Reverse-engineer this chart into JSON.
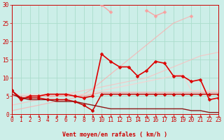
{
  "background_color": "#cceee8",
  "grid_color": "#aaddcc",
  "xlabel": "Vent moyen/en rafales ( km/h )",
  "xlim": [
    0,
    23
  ],
  "ylim": [
    0,
    30
  ],
  "yticks": [
    0,
    5,
    10,
    15,
    20,
    25,
    30
  ],
  "xticks": [
    0,
    1,
    2,
    3,
    4,
    5,
    6,
    7,
    8,
    9,
    10,
    11,
    12,
    13,
    14,
    15,
    16,
    17,
    18,
    19,
    20,
    21,
    22,
    23
  ],
  "series": [
    {
      "x": [
        0,
        1,
        2,
        3,
        4,
        5,
        6,
        7,
        8,
        9,
        10,
        11,
        12,
        13,
        14,
        15,
        16,
        17,
        18,
        19,
        20,
        21,
        22,
        23
      ],
      "y": [
        1.0,
        1.5,
        2.0,
        2.5,
        3.0,
        3.5,
        4.0,
        4.5,
        5.5,
        7.0,
        9.0,
        11.0,
        13.0,
        15.0,
        17.0,
        19.0,
        21.0,
        23.0,
        25.0,
        26.0,
        27.0,
        null,
        null,
        null
      ],
      "color": "#ffaaaa",
      "lw": 0.9,
      "marker": null,
      "ms": 0,
      "alpha": 0.7,
      "linestyle": "-"
    },
    {
      "x": [
        0,
        1,
        2,
        3,
        4,
        5,
        6,
        7,
        8,
        9,
        10,
        11,
        12,
        13,
        14,
        15,
        16,
        17,
        18,
        19,
        20,
        21,
        22,
        23
      ],
      "y": [
        2.5,
        3.0,
        3.5,
        4.0,
        4.5,
        5.0,
        5.5,
        6.0,
        6.5,
        7.0,
        7.5,
        8.0,
        8.5,
        9.0,
        9.5,
        10.0,
        11.0,
        12.0,
        13.0,
        14.0,
        15.0,
        16.0,
        16.5,
        17.0
      ],
      "color": "#ffbbbb",
      "lw": 0.9,
      "marker": null,
      "ms": 0,
      "alpha": 0.7,
      "linestyle": "-"
    },
    {
      "x": [
        0,
        1,
        2,
        3,
        4,
        5,
        6,
        7,
        8,
        9,
        10,
        11,
        12,
        13,
        14,
        15,
        16,
        17,
        18,
        19,
        20,
        21,
        22,
        23
      ],
      "y": [
        5.5,
        5.5,
        5.5,
        5.5,
        5.5,
        5.5,
        5.5,
        5.5,
        5.5,
        6.0,
        6.5,
        7.0,
        7.5,
        8.0,
        8.5,
        9.0,
        9.5,
        10.0,
        10.5,
        11.0,
        6.5,
        6.5,
        6.5,
        6.5
      ],
      "color": "#ffcccc",
      "lw": 0.9,
      "marker": null,
      "ms": 0,
      "alpha": 0.75,
      "linestyle": "-"
    },
    {
      "x": [
        0,
        1,
        2,
        3,
        4,
        5,
        6,
        7,
        8,
        9,
        10,
        11,
        12,
        13,
        14,
        15,
        16,
        17,
        18,
        19,
        20,
        21,
        22,
        23
      ],
      "y": [
        5.0,
        5.0,
        5.0,
        5.0,
        5.0,
        5.0,
        5.0,
        5.0,
        5.0,
        5.5,
        6.0,
        6.0,
        6.0,
        6.0,
        6.0,
        6.0,
        6.0,
        6.0,
        6.0,
        6.0,
        6.0,
        6.0,
        6.0,
        6.0
      ],
      "color": "#ff9999",
      "lw": 1.0,
      "marker": null,
      "ms": 0,
      "alpha": 0.8,
      "linestyle": "-"
    },
    {
      "x": [
        0,
        1,
        2,
        3,
        4,
        5,
        6,
        7,
        8,
        9,
        10,
        11,
        12,
        13,
        14,
        15,
        16,
        17,
        18,
        19,
        20,
        21,
        22,
        23
      ],
      "y": [
        null,
        null,
        null,
        null,
        null,
        null,
        null,
        null,
        null,
        null,
        30.0,
        28.0,
        null,
        null,
        null,
        28.5,
        27.0,
        28.0,
        null,
        null,
        27.0,
        null,
        null,
        null
      ],
      "color": "#ff9999",
      "lw": 1.0,
      "marker": "D",
      "ms": 2.5,
      "alpha": 0.85,
      "linestyle": "-"
    },
    {
      "x": [
        0,
        1,
        2,
        3,
        4,
        5,
        6,
        7,
        8,
        9,
        10,
        11,
        12,
        13,
        14,
        15,
        16,
        17,
        18,
        19,
        20,
        21,
        22,
        23
      ],
      "y": [
        6.5,
        4.0,
        5.0,
        5.0,
        5.5,
        5.5,
        5.5,
        5.0,
        4.5,
        5.0,
        16.5,
        14.5,
        13.0,
        13.0,
        10.5,
        12.0,
        14.5,
        14.0,
        10.5,
        10.5,
        9.0,
        9.5,
        4.0,
        4.5
      ],
      "color": "#dd0000",
      "lw": 1.2,
      "marker": "D",
      "ms": 2.5,
      "alpha": 1.0,
      "linestyle": "-"
    },
    {
      "x": [
        0,
        1,
        2,
        3,
        4,
        5,
        6,
        7,
        8,
        9,
        10,
        11,
        12,
        13,
        14,
        15,
        16,
        17,
        18,
        19,
        20,
        21,
        22,
        23
      ],
      "y": [
        6.5,
        4.5,
        4.5,
        4.5,
        4.0,
        4.0,
        4.0,
        3.5,
        2.5,
        1.0,
        5.5,
        5.5,
        5.5,
        5.5,
        5.5,
        5.5,
        5.5,
        5.5,
        5.5,
        5.5,
        5.5,
        5.5,
        5.5,
        5.5
      ],
      "color": "#cc0000",
      "lw": 1.1,
      "marker": "D",
      "ms": 2.5,
      "alpha": 1.0,
      "linestyle": "-"
    },
    {
      "x": [
        0,
        1,
        2,
        3,
        4,
        5,
        6,
        7,
        8,
        9,
        10,
        11,
        12,
        13,
        14,
        15,
        16,
        17,
        18,
        19,
        20,
        21,
        22,
        23
      ],
      "y": [
        5.5,
        4.5,
        4.0,
        4.0,
        4.0,
        3.5,
        3.5,
        3.5,
        3.0,
        2.5,
        2.0,
        1.5,
        1.5,
        1.5,
        1.5,
        1.5,
        1.5,
        1.5,
        1.5,
        1.5,
        1.0,
        1.0,
        0.5,
        0.5
      ],
      "color": "#880000",
      "lw": 1.0,
      "marker": null,
      "ms": 0,
      "alpha": 0.9,
      "linestyle": "-"
    }
  ],
  "arrow_color": "#cc0000",
  "tick_color": "#cc0000",
  "tick_fontsize": 5.5,
  "xlabel_fontsize": 6.0
}
